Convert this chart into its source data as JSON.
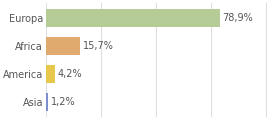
{
  "categories": [
    "Europa",
    "Africa",
    "America",
    "Asia"
  ],
  "values": [
    78.9,
    15.7,
    4.2,
    1.2
  ],
  "labels": [
    "78,9%",
    "15,7%",
    "4,2%",
    "1,2%"
  ],
  "bar_colors": [
    "#b5cc96",
    "#e0a96d",
    "#e8c84a",
    "#7b8fcf"
  ],
  "background_color": "#ffffff",
  "grid_color": "#e0e0e0",
  "text_color": "#555555",
  "xlim": [
    0,
    105
  ],
  "figsize": [
    2.8,
    1.2
  ],
  "dpi": 100,
  "bar_height": 0.62,
  "label_fontsize": 7.0,
  "ytick_fontsize": 7.0
}
